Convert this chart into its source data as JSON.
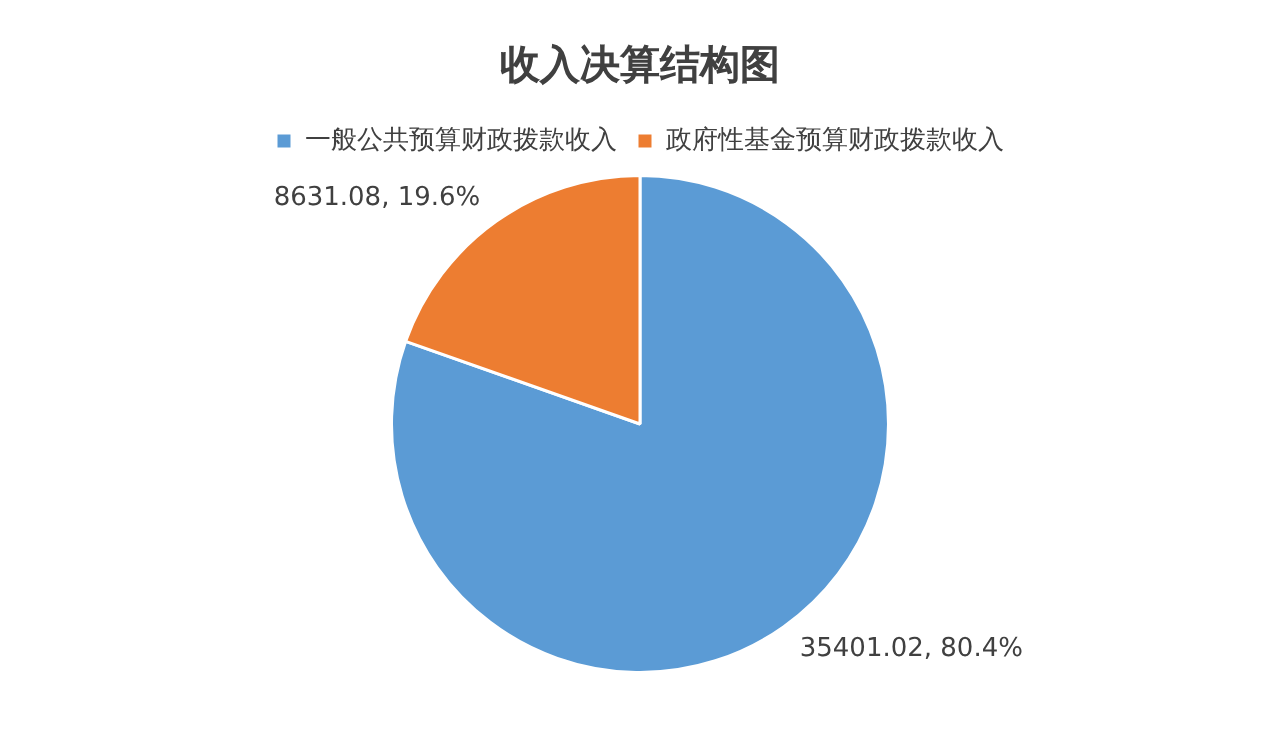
{
  "chart_data": {
    "type": "pie",
    "title": "收入决算结构图",
    "categories": [
      "一般公共预算财政拨款收入",
      "政府性基金预算财政拨款收入"
    ],
    "values": [
      35401.02,
      8631.08
    ],
    "colors": [
      "#5b9bd5",
      "#ed7d31"
    ],
    "value_labels": [
      "35401.02, 80.4%",
      "8631.08, 19.6%"
    ],
    "legend": "top"
  }
}
